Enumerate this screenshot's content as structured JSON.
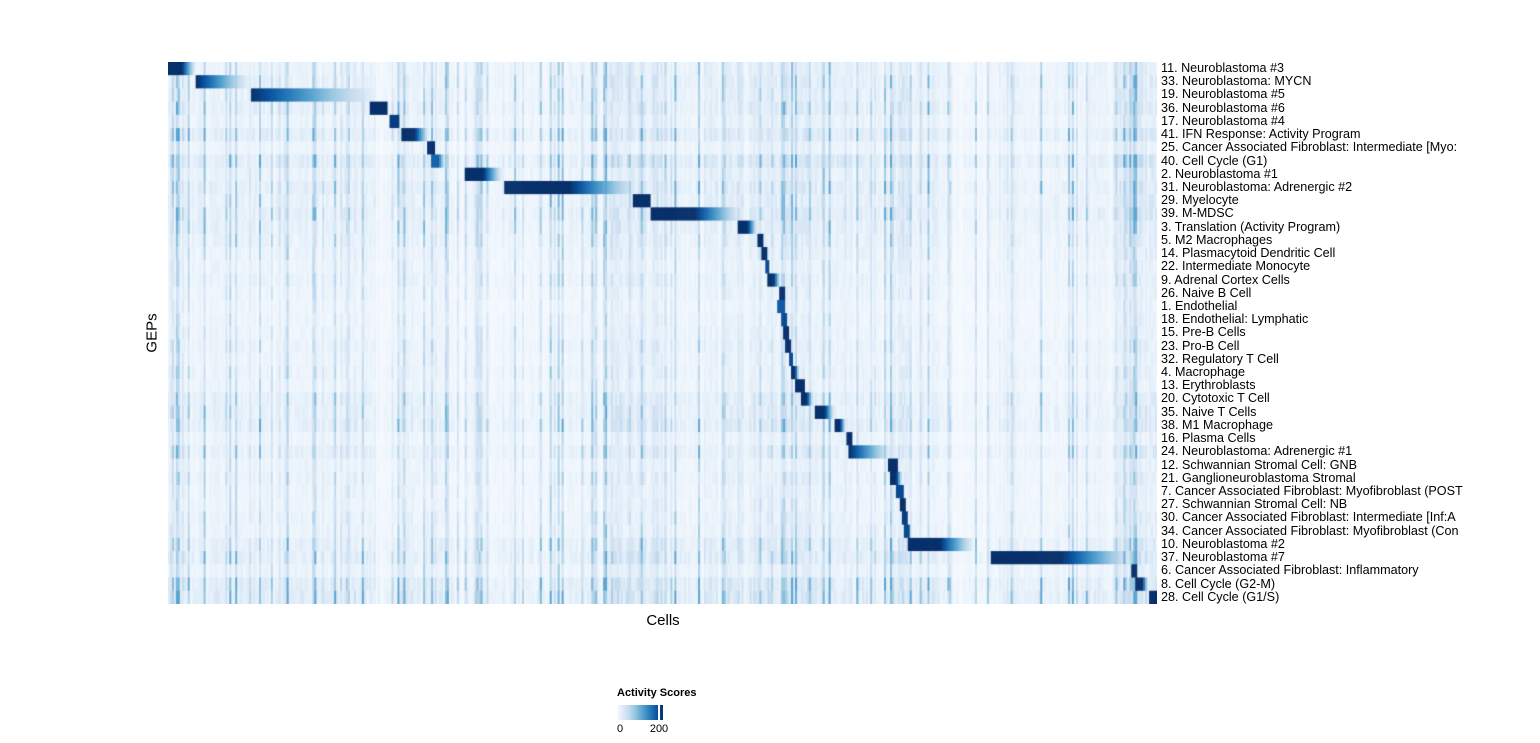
{
  "chart_data": {
    "type": "heatmap",
    "xlabel": "Cells",
    "ylabel": "GEPs",
    "legend": {
      "title": "Activity Scores",
      "tick_min": "0",
      "tick_max": "200",
      "value_min": 0,
      "value_max": 220
    },
    "colors": {
      "colormap_name": "Blues",
      "colormap_stops": [
        "#f7fbff",
        "#deebf7",
        "#c6dbef",
        "#9ecae1",
        "#6baed6",
        "#4292c6",
        "#2171b5",
        "#08519c",
        "#08306b"
      ],
      "background": "#ffffff",
      "text": "#000000"
    },
    "grid": false,
    "legend_position": "bottom-left",
    "rows": [
      {
        "label": "11. Neuroblastoma #3",
        "block": [
          0.0,
          0.026,
          1.0,
          2
        ],
        "noise": 0.4
      },
      {
        "label": "33. Neuroblastoma: MYCN",
        "block": [
          0.028,
          0.081,
          1.0,
          1
        ],
        "noise": 0.45
      },
      {
        "label": "19. Neuroblastoma #5",
        "block": [
          0.083,
          0.207,
          1.0,
          1
        ],
        "noise": 0.42
      },
      {
        "label": "36. Neuroblastoma #6",
        "block": [
          0.204,
          0.221,
          1.0,
          0
        ],
        "noise": 0.48
      },
      {
        "label": "17. Neuroblastoma #4",
        "block": [
          0.223,
          0.233,
          0.95,
          0
        ],
        "noise": 0.35
      },
      {
        "label": "41. IFN Response: Activity Program",
        "block": [
          0.235,
          0.262,
          1.0,
          2
        ],
        "noise": 0.55
      },
      {
        "label": "25. Cancer Associated Fibroblast: Intermediate [Myo:",
        "block": [
          0.262,
          0.268,
          1.0,
          0
        ],
        "noise": 0.3
      },
      {
        "label": "40. Cell Cycle (G1)",
        "block": [
          0.266,
          0.279,
          0.8,
          2
        ],
        "noise": 0.62
      },
      {
        "label": "2. Neuroblastoma #1",
        "block": [
          0.299,
          0.336,
          1.0,
          2
        ],
        "noise": 0.4
      },
      {
        "label": "31. Neuroblastoma: Adrenergic #2",
        "block": [
          0.339,
          0.471,
          1.0,
          2
        ],
        "noise": 0.52
      },
      {
        "label": "29. Myelocyte",
        "block": [
          0.47,
          0.486,
          1.0,
          0
        ],
        "noise": 0.45
      },
      {
        "label": "39. M-MDSC",
        "block": [
          0.487,
          0.576,
          1.0,
          2
        ],
        "noise": 0.52
      },
      {
        "label": "3. Translation (Activity Program)",
        "block": [
          0.576,
          0.594,
          1.0,
          2
        ],
        "noise": 0.45
      },
      {
        "label": "5. M2 Macrophages",
        "block": [
          0.595,
          0.601,
          1.0,
          0
        ],
        "noise": 0.4
      },
      {
        "label": "14. Plasmacytoid Dendritic Cell",
        "block": [
          0.599,
          0.605,
          1.0,
          0
        ],
        "noise": 0.35
      },
      {
        "label": "22. Intermediate Monocyte",
        "block": [
          0.603,
          0.607,
          0.9,
          0
        ],
        "noise": 0.3
      },
      {
        "label": "9. Adrenal Cortex Cells",
        "block": [
          0.605,
          0.618,
          1.0,
          2
        ],
        "noise": 0.35
      },
      {
        "label": "26. Naive B Cell",
        "block": [
          0.618,
          0.622,
          1.0,
          0
        ],
        "noise": 0.3
      },
      {
        "label": "1. Endothelial",
        "block": [
          0.616,
          0.622,
          0.85,
          0
        ],
        "noise": 0.25
      },
      {
        "label": "18. Endothelial: Lymphatic",
        "block": [
          0.619,
          0.624,
          0.9,
          0
        ],
        "noise": 0.28
      },
      {
        "label": "15. Pre-B Cells",
        "block": [
          0.621,
          0.626,
          1.0,
          0
        ],
        "noise": 0.3
      },
      {
        "label": "23. Pro-B Cell",
        "block": [
          0.624,
          0.628,
          1.0,
          0
        ],
        "noise": 0.35
      },
      {
        "label": "32. Regulatory T Cell",
        "block": [
          0.627,
          0.631,
          0.9,
          0
        ],
        "noise": 0.3
      },
      {
        "label": "4. Macrophage",
        "block": [
          0.629,
          0.637,
          1.0,
          2
        ],
        "noise": 0.35
      },
      {
        "label": "13. Erythroblasts",
        "block": [
          0.634,
          0.642,
          1.0,
          0
        ],
        "noise": 0.3
      },
      {
        "label": "20. Cytotoxic T Cell",
        "block": [
          0.639,
          0.651,
          1.0,
          2
        ],
        "noise": 0.45
      },
      {
        "label": "35. Naive T Cells",
        "block": [
          0.654,
          0.672,
          1.0,
          2
        ],
        "noise": 0.45
      },
      {
        "label": "38. M1 Macrophage",
        "block": [
          0.673,
          0.684,
          1.0,
          2
        ],
        "noise": 0.5
      },
      {
        "label": "16. Plasma Cells",
        "block": [
          0.686,
          0.69,
          1.0,
          0
        ],
        "noise": 0.3
      },
      {
        "label": "24. Neuroblastoma: Adrenergic #1",
        "block": [
          0.688,
          0.73,
          1.0,
          1
        ],
        "noise": 0.45
      },
      {
        "label": "12. Schwannian Stromal Cell: GNB",
        "block": [
          0.727,
          0.736,
          1.0,
          0
        ],
        "noise": 0.3
      },
      {
        "label": "21. Ganglioneuroblastoma Stromal",
        "block": [
          0.73,
          0.741,
          1.0,
          2
        ],
        "noise": 0.35
      },
      {
        "label": "7. Cancer Associated Fibroblast: Myofibroblast (POST",
        "block": [
          0.735,
          0.743,
          0.9,
          0
        ],
        "noise": 0.3
      },
      {
        "label": "27. Schwannian Stromal Cell: NB",
        "block": [
          0.74,
          0.744,
          1.0,
          0
        ],
        "noise": 0.3
      },
      {
        "label": "30. Cancer Associated Fibroblast: Intermediate [Inf:A",
        "block": [
          0.741,
          0.746,
          0.95,
          0
        ],
        "noise": 0.35
      },
      {
        "label": "34. Cancer Associated Fibroblast: Myofibroblast (Con",
        "block": [
          0.743,
          0.748,
          0.9,
          0
        ],
        "noise": 0.35
      },
      {
        "label": "10. Neuroblastoma #2",
        "block": [
          0.747,
          0.812,
          1.0,
          2
        ],
        "noise": 0.5
      },
      {
        "label": "37. Neuroblastoma #7",
        "block": [
          0.831,
          0.973,
          1.0,
          2
        ],
        "noise": 0.55
      },
      {
        "label": "6. Cancer Associated Fibroblast: Inflammatory",
        "block": [
          0.974,
          0.979,
          1.0,
          0
        ],
        "noise": 0.35
      },
      {
        "label": "8. Cell Cycle (G2-M)",
        "block": [
          0.978,
          0.99,
          1.0,
          2
        ],
        "noise": 0.6
      },
      {
        "label": "28. Cell Cycle (G1/S)",
        "block": [
          0.991,
          1.0,
          1.0,
          0
        ],
        "noise": 0.65
      }
    ],
    "noise_zones": [
      [
        0.0,
        0.09,
        0.06
      ],
      [
        0.09,
        0.21,
        0.07
      ],
      [
        0.23,
        0.29,
        0.09
      ],
      [
        0.3,
        0.44,
        0.04
      ],
      [
        0.44,
        0.5,
        0.13
      ],
      [
        0.5,
        0.54,
        0.05
      ],
      [
        0.54,
        0.635,
        0.11
      ],
      [
        0.635,
        0.67,
        0.09
      ],
      [
        0.67,
        0.78,
        0.07
      ],
      [
        0.73,
        0.75,
        0.12
      ],
      [
        0.83,
        0.95,
        0.04
      ],
      [
        0.955,
        1.0,
        0.15
      ]
    ]
  }
}
